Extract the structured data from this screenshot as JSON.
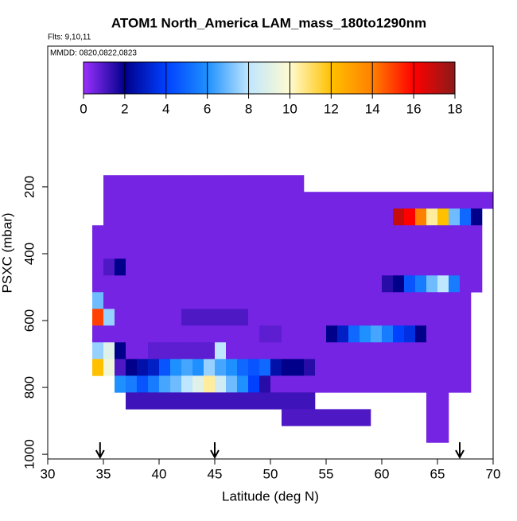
{
  "chart_data": {
    "type": "heatmap",
    "title": "ATOM1 North_America LAM_mass_180to1290nm",
    "subtitle": "Flts: 9,10,11",
    "annotation": "MMDD: 0820,0822,0823",
    "xlabel": "Latitude (deg N)",
    "ylabel": "PSXC (mbar)",
    "xlim": [
      30,
      70
    ],
    "xticks": [
      30,
      35,
      40,
      45,
      50,
      55,
      60,
      65,
      70
    ],
    "ylim": [
      1014,
      -221
    ],
    "yticks": [
      200,
      400,
      600,
      800,
      1000
    ],
    "colorbar": {
      "lim": [
        0,
        18
      ],
      "ticks": [
        0,
        2,
        4,
        6,
        8,
        10,
        12,
        14,
        16,
        18
      ],
      "colors": [
        "#9b30ff",
        "#00008b",
        "#0040ff",
        "#1e90ff",
        "#bfe6ff",
        "#fffbd0",
        "#ffc000",
        "#ff8000",
        "#ff0000",
        "#8b1a1a"
      ]
    },
    "xbins": [
      34,
      35,
      36,
      37,
      38,
      39,
      40,
      41,
      42,
      43,
      44,
      45,
      46,
      47,
      48,
      49,
      50,
      51,
      52,
      53,
      54,
      55,
      56,
      57,
      58,
      59,
      60,
      61,
      62,
      63,
      64,
      65,
      66,
      67,
      68,
      69,
      70
    ],
    "ybins": [
      165,
      215,
      265,
      315,
      365,
      415,
      465,
      515,
      565,
      615,
      665,
      715,
      765,
      815,
      865,
      915,
      965
    ],
    "z": [
      [
        null,
        0.5,
        0.5,
        0.5,
        0.5,
        0.5,
        0.5,
        0.5,
        0.5,
        0.5,
        0.5,
        0.5,
        0.5,
        0.5,
        0.5,
        0.5,
        0.5,
        0.5,
        0.5,
        null,
        null,
        null,
        null,
        null,
        null,
        null,
        null,
        null,
        null,
        null,
        null,
        null,
        null,
        null,
        null,
        null
      ],
      [
        null,
        0.5,
        0.5,
        0.5,
        0.5,
        0.5,
        0.5,
        0.5,
        0.5,
        0.5,
        0.5,
        0.5,
        0.5,
        0.5,
        0.5,
        0.5,
        0.5,
        0.5,
        0.5,
        0.5,
        0.5,
        0.5,
        0.5,
        0.5,
        0.5,
        0.5,
        0.5,
        0.5,
        0.5,
        0.5,
        0.5,
        0.5,
        0.5,
        0.5,
        0.5,
        0.5
      ],
      [
        null,
        0.5,
        0.5,
        0.5,
        0.5,
        0.5,
        0.5,
        0.5,
        0.5,
        0.5,
        0.5,
        0.5,
        0.5,
        0.5,
        0.5,
        0.5,
        0.5,
        0.5,
        0.5,
        0.5,
        0.5,
        0.5,
        0.5,
        0.5,
        0.5,
        0.5,
        0.5,
        17,
        16,
        14,
        10.5,
        12,
        7,
        5,
        2,
        null
      ],
      [
        0.5,
        0.5,
        0.5,
        0.5,
        0.5,
        0.5,
        0.5,
        0.5,
        0.5,
        0.5,
        0.5,
        0.5,
        0.5,
        0.5,
        0.5,
        0.5,
        0.5,
        0.5,
        0.5,
        0.5,
        0.5,
        0.5,
        0.5,
        0.5,
        0.5,
        0.5,
        0.5,
        0.5,
        0.5,
        0.5,
        0.5,
        0.5,
        0.5,
        0.5,
        0.5,
        null
      ],
      [
        0.5,
        0.5,
        0.5,
        0.5,
        0.5,
        0.5,
        0.5,
        0.5,
        0.5,
        0.5,
        0.5,
        0.5,
        0.5,
        0.5,
        0.5,
        0.5,
        0.5,
        0.5,
        0.5,
        0.5,
        0.5,
        0.5,
        0.5,
        0.5,
        0.5,
        0.5,
        0.5,
        0.5,
        0.5,
        0.5,
        0.5,
        0.5,
        0.5,
        0.5,
        0.5,
        null
      ],
      [
        0.5,
        1,
        2,
        0.5,
        0.5,
        0.5,
        0.5,
        0.5,
        0.5,
        0.5,
        0.5,
        0.5,
        0.5,
        0.5,
        0.5,
        0.5,
        0.5,
        0.5,
        0.5,
        0.5,
        0.5,
        0.5,
        0.5,
        0.5,
        0.5,
        0.5,
        0.5,
        0.5,
        0.5,
        0.5,
        0.5,
        0.5,
        0.5,
        0.5,
        0.5,
        null
      ],
      [
        0.5,
        0.5,
        0.5,
        0.5,
        0.5,
        0.5,
        0.5,
        0.5,
        0.5,
        0.5,
        0.5,
        0.5,
        0.5,
        0.5,
        0.5,
        0.5,
        0.5,
        0.5,
        0.5,
        0.5,
        0.5,
        0.5,
        0.5,
        0.5,
        0.5,
        0.5,
        1.5,
        2,
        4.5,
        5.5,
        7,
        8,
        5.5,
        0.5,
        0.5,
        null
      ],
      [
        7,
        0.5,
        0.5,
        0.5,
        0.5,
        0.5,
        0.5,
        0.5,
        0.5,
        0.5,
        0.5,
        0.5,
        0.5,
        0.5,
        0.5,
        0.5,
        0.5,
        0.5,
        0.5,
        0.5,
        0.5,
        0.5,
        0.5,
        0.5,
        0.5,
        0.5,
        0.5,
        0.5,
        0.5,
        0.5,
        0.5,
        0.5,
        0.5,
        0.5,
        null,
        null
      ],
      [
        15,
        7.5,
        0.5,
        0.5,
        0.5,
        0.5,
        0.5,
        0.5,
        1,
        1,
        1,
        1,
        1,
        1,
        0.5,
        0.5,
        0.5,
        0.5,
        0.5,
        0.5,
        0.5,
        0.5,
        0.5,
        0.5,
        0.5,
        0.5,
        0.5,
        0.5,
        0.5,
        0.5,
        0.5,
        0.5,
        0.5,
        0.5,
        null,
        null
      ],
      [
        0.5,
        0.5,
        0.5,
        0.5,
        0.5,
        0.5,
        0.5,
        0.5,
        0.5,
        0.5,
        0.5,
        0.5,
        0.5,
        0.5,
        0.5,
        0.8,
        0.8,
        0.5,
        0.5,
        0.5,
        0.5,
        2,
        3,
        5,
        6,
        6.5,
        5.5,
        4,
        3.5,
        2,
        0.5,
        0.5,
        0.5,
        0.5,
        null,
        null
      ],
      [
        7.5,
        9,
        2,
        0.5,
        0.5,
        0.8,
        0.8,
        0.8,
        0.8,
        0.8,
        0.8,
        8,
        0.5,
        0.5,
        0.5,
        0.5,
        0.5,
        0.5,
        0.5,
        0.5,
        0.5,
        0.5,
        0.5,
        0.5,
        0.5,
        0.5,
        0.5,
        0.5,
        0.5,
        0.5,
        0.5,
        0.5,
        0.5,
        0.5,
        null,
        null
      ],
      [
        12,
        9.5,
        1,
        2,
        2.5,
        3,
        4.5,
        6,
        6.5,
        6,
        7.5,
        6.5,
        6,
        5,
        4.5,
        5,
        2.5,
        2,
        2,
        1.5,
        0.5,
        0.5,
        0.5,
        0.5,
        0.5,
        0.5,
        0.5,
        0.5,
        0.5,
        0.5,
        0.5,
        0.5,
        0.5,
        0.5,
        null,
        null
      ],
      [
        null,
        null,
        6,
        5.5,
        4.5,
        5.5,
        6.5,
        7,
        8,
        9,
        10.5,
        8.5,
        7,
        6,
        4,
        1.5,
        0.5,
        0.5,
        0.5,
        0.5,
        0.5,
        0.5,
        0.5,
        0.5,
        0.5,
        0.5,
        0.5,
        0.5,
        0.5,
        0.5,
        0.5,
        0.5,
        0.5,
        0.5,
        null,
        null
      ],
      [
        null,
        null,
        null,
        1.2,
        1.2,
        1.2,
        1.2,
        1.2,
        1.2,
        1.2,
        1.2,
        1.2,
        1.2,
        1.2,
        1.2,
        1.2,
        1.2,
        1.2,
        1.2,
        1.2,
        null,
        null,
        null,
        null,
        null,
        null,
        null,
        null,
        null,
        null,
        0.5,
        0.5,
        null,
        null,
        null,
        null
      ],
      [
        null,
        null,
        null,
        null,
        null,
        null,
        null,
        null,
        null,
        null,
        null,
        null,
        null,
        null,
        null,
        null,
        null,
        1,
        1,
        1,
        1,
        1,
        1,
        1,
        1,
        null,
        null,
        null,
        null,
        null,
        0.5,
        0.5,
        null,
        null,
        null,
        null
      ],
      [
        null,
        null,
        null,
        null,
        null,
        null,
        null,
        null,
        null,
        null,
        null,
        null,
        null,
        null,
        null,
        null,
        null,
        null,
        null,
        null,
        null,
        null,
        null,
        null,
        null,
        null,
        null,
        null,
        null,
        null,
        0.5,
        0.5,
        null,
        null,
        null,
        null
      ]
    ],
    "arrows": [
      34.7,
      45,
      67
    ]
  }
}
